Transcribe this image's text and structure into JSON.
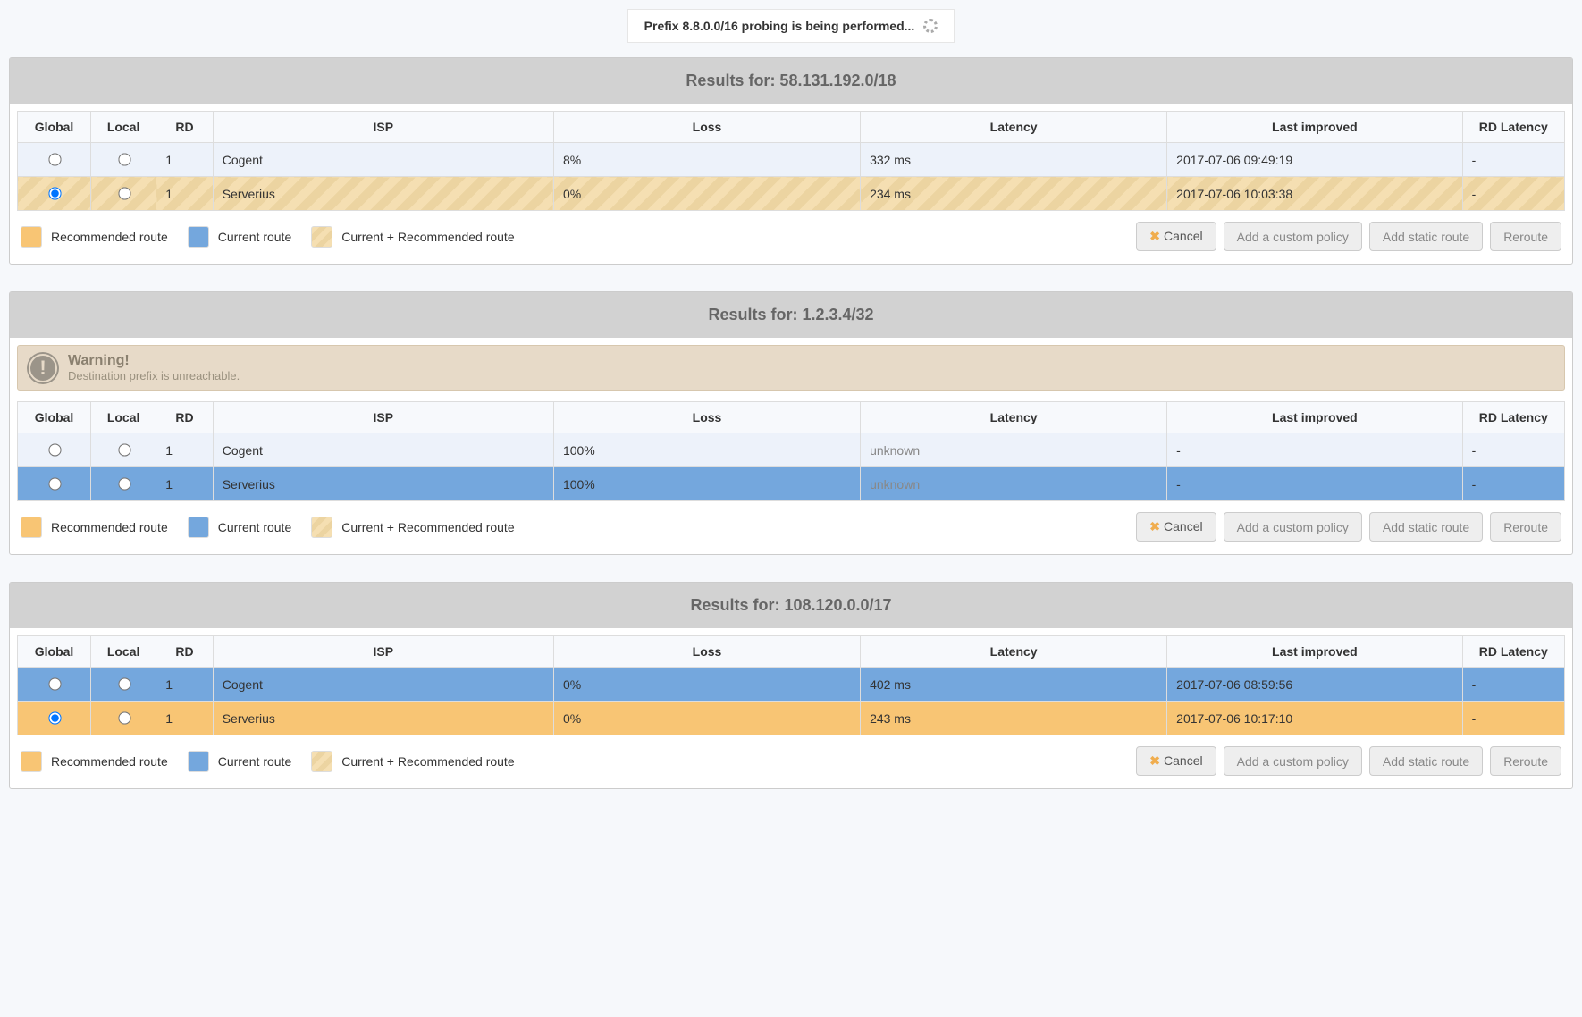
{
  "probe_banner": "Prefix 8.8.0.0/16 probing is being performed...",
  "columns": {
    "global": "Global",
    "local": "Local",
    "rd": "RD",
    "isp": "ISP",
    "loss": "Loss",
    "latency": "Latency",
    "last_improved": "Last improved",
    "rd_latency": "RD Latency"
  },
  "legend": {
    "recommended": "Recommended route",
    "current": "Current route",
    "both": "Current + Recommended route"
  },
  "buttons": {
    "cancel": "Cancel",
    "add_policy": "Add a custom policy",
    "add_static": "Add static route",
    "reroute": "Reroute"
  },
  "warning": {
    "title": "Warning!",
    "msg": "Destination prefix is unreachable."
  },
  "panels": [
    {
      "title": "Results for: 58.131.192.0/18",
      "warning": false,
      "rows": [
        {
          "style": "lightblue",
          "global_checked": false,
          "local_checked": false,
          "rd": "1",
          "isp": "Cogent",
          "loss": "8%",
          "latency": "332 ms",
          "last": "2017-07-06 09:49:19",
          "rdlat": "-"
        },
        {
          "style": "striped",
          "global_checked": true,
          "local_checked": false,
          "rd": "1",
          "isp": "Serverius",
          "loss": "0%",
          "latency": "234 ms",
          "last": "2017-07-06 10:03:38",
          "rdlat": "-"
        }
      ]
    },
    {
      "title": "Results for: 1.2.3.4/32",
      "warning": true,
      "rows": [
        {
          "style": "lightblue",
          "global_checked": false,
          "local_checked": false,
          "rd": "1",
          "isp": "Cogent",
          "loss": "100%",
          "latency": "unknown",
          "latency_muted": true,
          "last": "-",
          "rdlat": "-"
        },
        {
          "style": "blue",
          "global_checked": false,
          "local_checked": false,
          "rd": "1",
          "isp": "Serverius",
          "loss": "100%",
          "latency": "unknown",
          "latency_muted": true,
          "last": "-",
          "rdlat": "-"
        }
      ]
    },
    {
      "title": "Results for: 108.120.0.0/17",
      "warning": false,
      "rows": [
        {
          "style": "blue",
          "global_checked": false,
          "local_checked": false,
          "rd": "1",
          "isp": "Cogent",
          "loss": "0%",
          "latency": "402 ms",
          "last": "2017-07-06 08:59:56",
          "rdlat": "-"
        },
        {
          "style": "orange",
          "global_checked": true,
          "local_checked": false,
          "rd": "1",
          "isp": "Serverius",
          "loss": "0%",
          "latency": "243 ms",
          "last": "2017-07-06 10:17:10",
          "rdlat": "-"
        }
      ]
    }
  ]
}
